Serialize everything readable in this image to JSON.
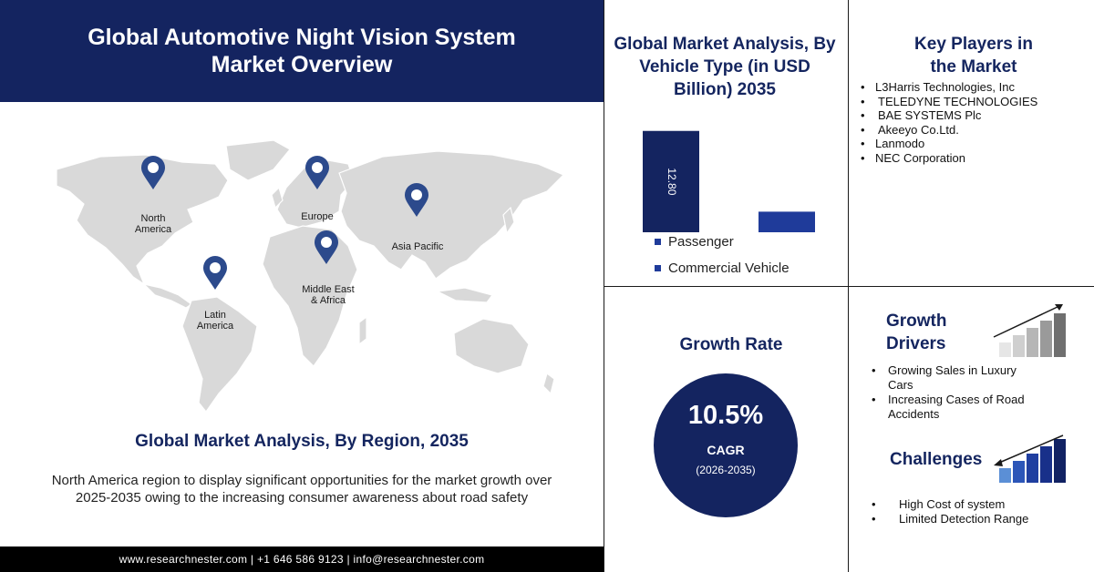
{
  "header": {
    "title_line1": "Global Automotive Night Vision System",
    "title_line2": "Market Overview"
  },
  "map": {
    "regions": [
      {
        "label_line1": "North",
        "label_line2": "America"
      },
      {
        "label_line1": "Europe",
        "label_line2": ""
      },
      {
        "label_line1": "Asia Pacific",
        "label_line2": ""
      },
      {
        "label_line1": "Middle East",
        "label_line2": "& Africa"
      },
      {
        "label_line1": "Latin",
        "label_line2": "America"
      }
    ],
    "pin_color": "#2c4a8c"
  },
  "region_section": {
    "title": "Global Market Analysis, By Region, 2035",
    "description": "North America region to display significant opportunities for the market growth over 2025-2035 owing to the increasing consumer awareness about road safety"
  },
  "footer": {
    "text": "www.researchnester.com | +1 646 586 9123 | info@researchnester.com"
  },
  "chart_data": {
    "type": "bar",
    "title": "Global Market Analysis, By Vehicle Type (in USD Billion) 2035",
    "categories": [
      "Passenger",
      "Commercial Vehicle"
    ],
    "values": [
      12.8,
      2.6
    ],
    "data_labels": [
      "12.80",
      ""
    ],
    "legend": [
      "Passenger",
      "Commercial Vehicle"
    ],
    "colors": [
      "#142460",
      "#1f3b9a"
    ],
    "ylim": [
      0,
      13
    ]
  },
  "key_players": {
    "title_line1": "Key Players in",
    "title_line2": "the Market",
    "items": [
      "L3Harris Technologies, Inc",
      "TELEDYNE TECHNOLOGIES",
      "BAE SYSTEMS Plc",
      "Akeeyo Co.Ltd.",
      "Lanmodo",
      "NEC Corporation"
    ]
  },
  "growth_rate": {
    "title": "Growth Rate",
    "value": "10.5%",
    "label": "CAGR",
    "period": "(2026-2035)"
  },
  "growth_drivers": {
    "title_line1": "Growth",
    "title_line2": "Drivers",
    "items": [
      "Growing Sales in Luxury Cars",
      "Increasing Cases of Road Accidents"
    ]
  },
  "challenges": {
    "title": "Challenges",
    "items": [
      "High Cost of system",
      "Limited Detection Range"
    ]
  },
  "bullet": "•"
}
